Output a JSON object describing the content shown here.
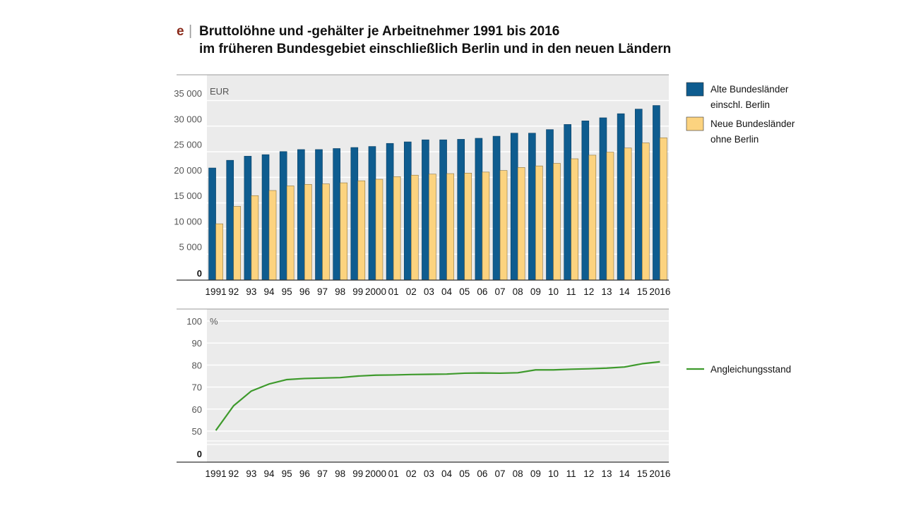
{
  "title": {
    "letter": "e",
    "separator": "|",
    "line1": "Bruttolöhne und -gehälter je Arbeitnehmer 1991 bis 2016",
    "line2": "im früheren Bundesgebiet einschließlich Berlin und in den neuen Ländern"
  },
  "colors": {
    "alte": "#0e5c8f",
    "neue": "#fcd37f",
    "line": "#3e9a2c",
    "panel": "#ebebeb"
  },
  "chart_data": [
    {
      "type": "bar",
      "unit_label": "EUR",
      "categories": [
        "1991",
        "92",
        "93",
        "94",
        "95",
        "96",
        "97",
        "98",
        "99",
        "2000",
        "01",
        "02",
        "03",
        "04",
        "05",
        "06",
        "07",
        "08",
        "09",
        "10",
        "11",
        "12",
        "13",
        "14",
        "15",
        "2016"
      ],
      "ylim": [
        0,
        35000
      ],
      "yticks": [
        "35 000",
        "30 000",
        "25 000",
        "20 000",
        "15 000",
        "10 000",
        "5 000",
        "0"
      ],
      "ytick_values": [
        35000,
        30000,
        25000,
        20000,
        15000,
        10000,
        5000,
        0
      ],
      "grid": true,
      "legend_position": "right",
      "series": [
        {
          "name": "Alte Bundesländer einschl. Berlin",
          "legend_lines": [
            "Alte Bundesländer",
            "einschl. Berlin"
          ],
          "color_key": "alte",
          "values": [
            21900,
            23400,
            24200,
            24500,
            25100,
            25500,
            25500,
            25700,
            25900,
            26100,
            26700,
            27000,
            27400,
            27400,
            27500,
            27700,
            28100,
            28700,
            28700,
            29400,
            30400,
            31100,
            31700,
            32500,
            33400,
            34100
          ]
        },
        {
          "name": "Neue Bundesländer ohne Berlin",
          "legend_lines": [
            "Neue Bundesländer",
            "ohne Berlin"
          ],
          "color_key": "neue",
          "values": [
            11000,
            14400,
            16500,
            17500,
            18400,
            18700,
            18800,
            19000,
            19400,
            19700,
            20200,
            20500,
            20700,
            20800,
            20900,
            21100,
            21400,
            22000,
            22300,
            22800,
            23700,
            24400,
            25000,
            25800,
            26800,
            27800
          ]
        }
      ]
    },
    {
      "type": "line",
      "unit_label": "%",
      "categories": [
        "1991",
        "92",
        "93",
        "94",
        "95",
        "96",
        "97",
        "98",
        "99",
        "2000",
        "01",
        "02",
        "03",
        "04",
        "05",
        "06",
        "07",
        "08",
        "09",
        "10",
        "11",
        "12",
        "13",
        "14",
        "15",
        "2016"
      ],
      "ylim": [
        0,
        100
      ],
      "yticks": [
        "100",
        "90",
        "80",
        "70",
        "60",
        "50",
        "0"
      ],
      "ytick_values": [
        100,
        90,
        80,
        70,
        60,
        50,
        0
      ],
      "axis_break": true,
      "grid": true,
      "legend_position": "right",
      "series": [
        {
          "name": "Angleichungsstand",
          "color_key": "line",
          "values": [
            50.3,
            61.5,
            68.2,
            71.4,
            73.4,
            73.9,
            74.1,
            74.3,
            75.0,
            75.4,
            75.5,
            75.7,
            75.8,
            75.9,
            76.3,
            76.4,
            76.3,
            76.5,
            77.8,
            77.8,
            78.1,
            78.3,
            78.6,
            79.1,
            80.6,
            81.5
          ]
        }
      ]
    }
  ]
}
